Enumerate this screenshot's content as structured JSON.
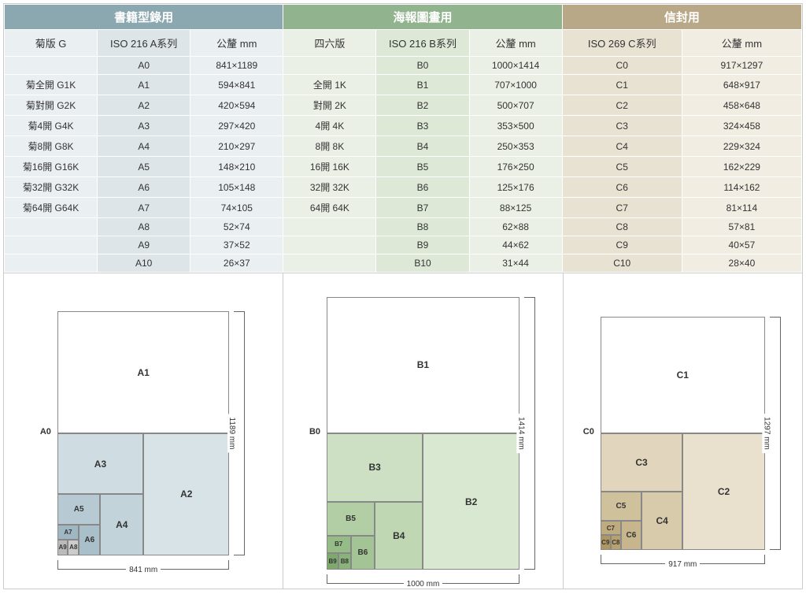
{
  "groups": {
    "a": {
      "title": "書籍型錄用",
      "cols": [
        "菊版 G",
        "ISO 216 A系列",
        "公釐 mm"
      ],
      "header_bg": "#8ba7b0",
      "cell_light": "#eaeff1",
      "cell_dark": "#dde5e8"
    },
    "b": {
      "title": "海報圖畫用",
      "cols": [
        "四六版",
        "ISO 216 B系列",
        "公釐 mm"
      ],
      "header_bg": "#91b48e",
      "cell_light": "#eaf0e6",
      "cell_dark": "#dde8d7"
    },
    "c": {
      "title": "信封用",
      "cols": [
        "ISO 269 C系列",
        "公釐 mm"
      ],
      "header_bg": "#b8a888",
      "cell_light": "#f1ede3",
      "cell_dark": "#e8e2d3"
    }
  },
  "rows": [
    {
      "a": [
        "",
        "A0",
        "841×1189"
      ],
      "b": [
        "",
        "B0",
        "1000×1414"
      ],
      "c": [
        "C0",
        "917×1297"
      ]
    },
    {
      "a": [
        "菊全開 G1K",
        "A1",
        "594×841"
      ],
      "b": [
        "全開 1K",
        "B1",
        "707×1000"
      ],
      "c": [
        "C1",
        "648×917"
      ]
    },
    {
      "a": [
        "菊對開 G2K",
        "A2",
        "420×594"
      ],
      "b": [
        "對開 2K",
        "B2",
        "500×707"
      ],
      "c": [
        "C2",
        "458×648"
      ]
    },
    {
      "a": [
        "菊4開 G4K",
        "A3",
        "297×420"
      ],
      "b": [
        "4開 4K",
        "B3",
        "353×500"
      ],
      "c": [
        "C3",
        "324×458"
      ]
    },
    {
      "a": [
        "菊8開 G8K",
        "A4",
        "210×297"
      ],
      "b": [
        "8開 8K",
        "B4",
        "250×353"
      ],
      "c": [
        "C4",
        "229×324"
      ]
    },
    {
      "a": [
        "菊16開 G16K",
        "A5",
        "148×210"
      ],
      "b": [
        "16開 16K",
        "B5",
        "176×250"
      ],
      "c": [
        "C5",
        "162×229"
      ]
    },
    {
      "a": [
        "菊32開 G32K",
        "A6",
        "105×148"
      ],
      "b": [
        "32開 32K",
        "B6",
        "125×176"
      ],
      "c": [
        "C6",
        "114×162"
      ]
    },
    {
      "a": [
        "菊64開 G64K",
        "A7",
        "74×105"
      ],
      "b": [
        "64開 64K",
        "B7",
        "88×125"
      ],
      "c": [
        "C7",
        "81×114"
      ]
    },
    {
      "a": [
        "",
        "A8",
        "52×74"
      ],
      "b": [
        "",
        "B8",
        "62×88"
      ],
      "c": [
        "C8",
        "57×81"
      ]
    },
    {
      "a": [
        "",
        "A9",
        "37×52"
      ],
      "b": [
        "",
        "B9",
        "44×62"
      ],
      "c": [
        "C9",
        "40×57"
      ]
    },
    {
      "a": [
        "",
        "A10",
        "26×37"
      ],
      "b": [
        "",
        "B10",
        "31×44"
      ],
      "c": [
        "C10",
        "28×40"
      ]
    }
  ],
  "diagrams": {
    "a": {
      "outer_label": "A0",
      "w_label": "841 mm",
      "h_label": "1189 mm",
      "scale": 0.26,
      "base_w": 841,
      "base_h": 1189,
      "colors": [
        "#ffffff",
        "#d8e3e8",
        "#cfdde3",
        "#c2d3da",
        "#b7cad3",
        "#a9bfca",
        "#9fb7c2",
        "#ccc",
        "#bbb",
        "#aaa"
      ],
      "labels": [
        "A1",
        "A2",
        "A3",
        "A4",
        "A5",
        "A6",
        "A7",
        "A8",
        "A9"
      ]
    },
    "b": {
      "outer_label": "B0",
      "w_label": "1000 mm",
      "h_label": "1414 mm",
      "scale": 0.245,
      "base_w": 1000,
      "base_h": 1414,
      "colors": [
        "#ffffff",
        "#d9e8d1",
        "#cde0c3",
        "#bfd7b3",
        "#b1cea4",
        "#a3c595",
        "#95bb86",
        "#8ab37a",
        "#7ea96d",
        "#73a061"
      ],
      "labels": [
        "B1",
        "B2",
        "B3",
        "B4",
        "B5",
        "B6",
        "B7",
        "B8",
        "B9"
      ]
    },
    "c": {
      "outer_label": "C0",
      "w_label": "917 mm",
      "h_label": "1297 mm",
      "scale": 0.228,
      "base_w": 917,
      "base_h": 1297,
      "colors": [
        "#ffffff",
        "#e9e1cd",
        "#e1d6bd",
        "#d8cbac",
        "#d0c19d",
        "#c7b68d",
        "#bfac7e",
        "#b7a26f",
        "#ae9760",
        "#a68d52"
      ],
      "labels": [
        "C1",
        "C2",
        "C3",
        "C4",
        "C5",
        "C6",
        "C7",
        "C8",
        "C9"
      ]
    }
  }
}
